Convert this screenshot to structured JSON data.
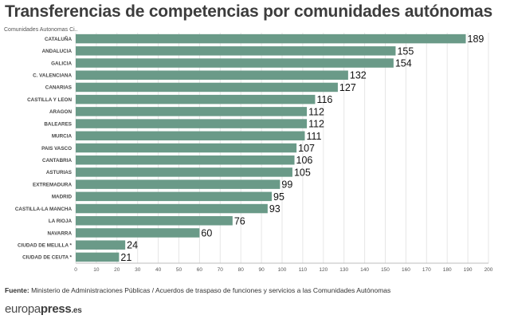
{
  "title": "Transferencias de competencias por comunidades autónomas",
  "dimension_label": "Comunidades Autonomas Ci..",
  "source": {
    "label": "Fuente:",
    "text": " Ministerio de Administraciones Públicas / Acuerdos de traspaso de funciones y servicios a las Comunidades Autónomas"
  },
  "logo": {
    "part1": "europa",
    "part2": "press",
    "part3": ".es"
  },
  "colors": {
    "bar": "#6a9a88",
    "title": "#3d3d3d",
    "grid": "#e6e6e6"
  },
  "chart_data": {
    "type": "bar",
    "orientation": "horizontal",
    "title": "Transferencias de competencias por comunidades autónomas",
    "categories": [
      "CATALUÑA",
      "ANDALUCIA",
      "GALICIA",
      "C. VALENCIANA",
      "CANARIAS",
      "CASTILLA Y LEON",
      "ARAGON",
      "BALEARES",
      "MURCIA",
      "PAIS VASCO",
      "CANTABRIA",
      "ASTURIAS",
      "EXTREMADURA",
      "MADRID",
      "CASTILLA-LA MANCHA",
      "LA RIOJA",
      "NAVARRA",
      "CIUDAD DE MELILLA *",
      "CIUDAD DE CEUTA *"
    ],
    "values": [
      189,
      155,
      154,
      132,
      127,
      116,
      112,
      112,
      111,
      107,
      106,
      105,
      99,
      95,
      93,
      76,
      60,
      24,
      21
    ],
    "x_ticks": [
      0,
      10,
      20,
      30,
      40,
      50,
      60,
      70,
      80,
      90,
      100,
      110,
      120,
      130,
      140,
      150,
      160,
      170,
      180,
      190,
      200
    ],
    "xlim": [
      0,
      200
    ],
    "grid": true,
    "data_labels": true
  }
}
